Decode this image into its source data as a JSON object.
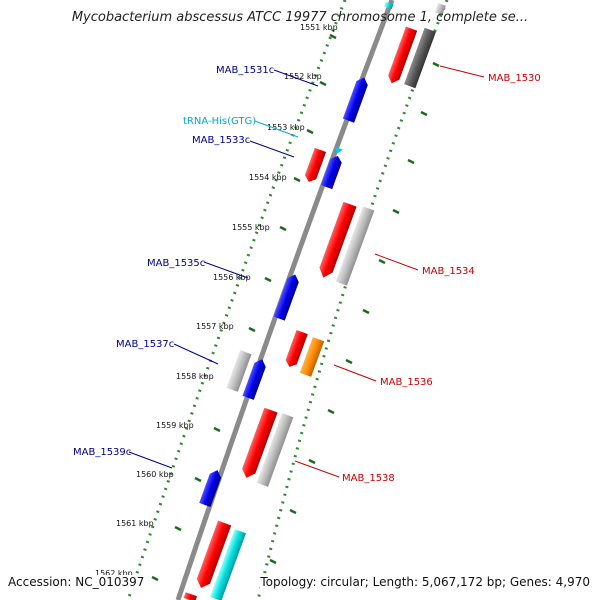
{
  "header": {
    "title": "Mycobacterium abscessus ATCC 19977 chromosome 1, complete se..."
  },
  "footer": {
    "accession": "Accession: NC_010397",
    "summary": "Topology: circular; Length: 5,067,172 bp; Genes: 4,970"
  },
  "colors": {
    "backbone": "#8a8a8a",
    "tick_dots": "#2e8b2e",
    "forward_gene": "#ff0000",
    "reverse_gene": "#0000ff",
    "cds": "#b8b8b8",
    "dark_cds": "#5a5a5a",
    "trna": "#00dddd",
    "orange_feature": "#ff8c00",
    "label_red": "#cc0000",
    "label_blue": "#00008b",
    "label_cyan": "#00aacc"
  },
  "kbp_labels": [
    "1551 kbp",
    "1552 kbp",
    "1553 kbp",
    "1554 kbp",
    "1555 kbp",
    "1556 kbp",
    "1557 kbp",
    "1558 kbp",
    "1559 kbp",
    "1560 kbp",
    "1561 kbp",
    "1562 kbp"
  ],
  "gene_labels": {
    "mab1530": "MAB_1530",
    "mab1531c": "MAB_1531c",
    "trna": "tRNA-His(GTG)",
    "mab1533c": "MAB_1533c",
    "mab1534": "MAB_1534",
    "mab1535c": "MAB_1535c",
    "mab1536": "MAB_1536",
    "mab1537c": "MAB_1537c",
    "mab1538": "MAB_1538",
    "mab1539c": "MAB_1539c"
  }
}
